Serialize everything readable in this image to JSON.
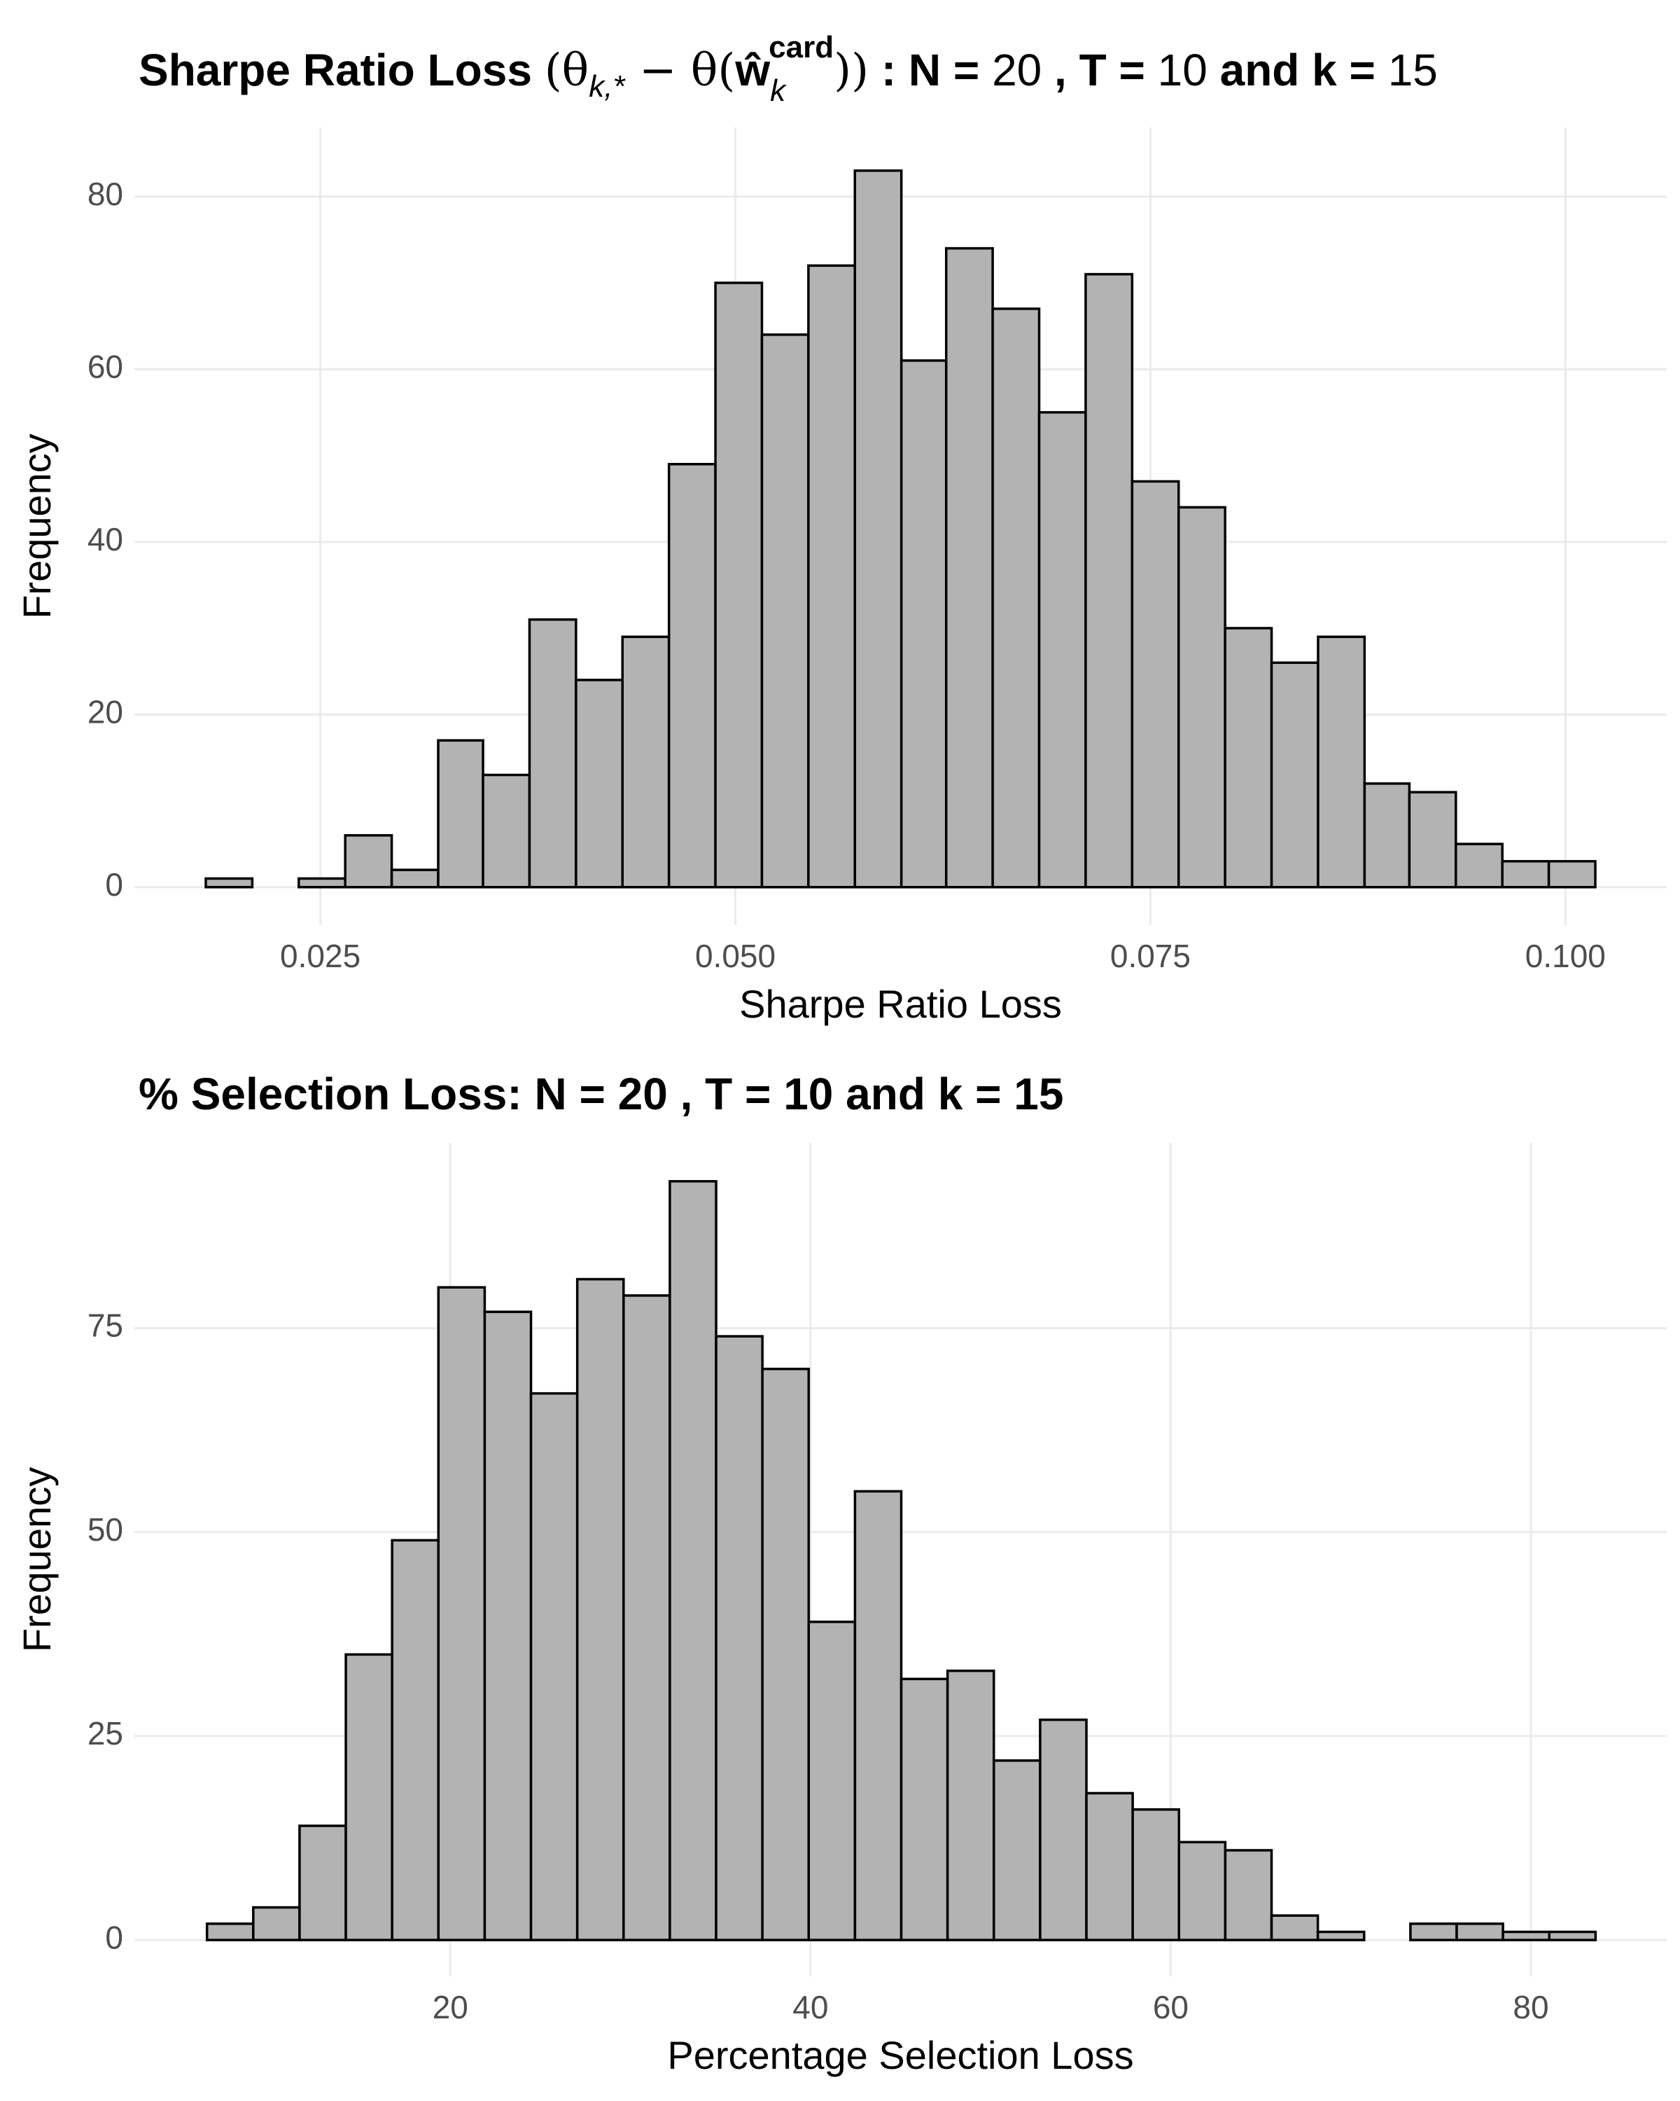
{
  "chart_data": [
    {
      "type": "histogram",
      "title": [
        "Sharpe Ratio Loss ",
        "(θ",
        "k,*",
        " − θ(",
        "ŵ",
        "k",
        "card",
        "))",
        " : N = ",
        "20",
        " , T = ",
        "10",
        "  and k = ",
        "15"
      ],
      "x_label": "Sharpe Ratio Loss",
      "y_label": "Frequency",
      "bins": [
        0.0181,
        0.0209,
        0.0237,
        0.0265,
        0.0293,
        0.0321,
        0.0348,
        0.0376,
        0.0404,
        0.0432,
        0.046,
        0.0488,
        0.0516,
        0.0544,
        0.0572,
        0.06,
        0.0627,
        0.0655,
        0.0683,
        0.0711,
        0.0739,
        0.0767,
        0.0795,
        0.0823,
        0.0851,
        0.0879,
        0.0906,
        0.0934,
        0.0962,
        0.099,
        0.1018
      ],
      "values": [
        1,
        0,
        1,
        6,
        2,
        17,
        13,
        31,
        24,
        29,
        49,
        70,
        64,
        72,
        83,
        61,
        74,
        67,
        55,
        71,
        47,
        44,
        30,
        26,
        29,
        12,
        11,
        5,
        3,
        3
      ],
      "color": "#b3b3b3",
      "xlim": [
        0.0138,
        0.1061
      ],
      "ylim": [
        -4.4,
        88
      ],
      "xticks": [
        0.025,
        {
          "value": 0.05,
          "label": "0.050"
        },
        0.075,
        {
          "value": 0.1,
          "label": "0.100"
        }
      ],
      "yticks": [
        0,
        20,
        40,
        60,
        80
      ],
      "grid": true
    },
    {
      "type": "histogram",
      "title": [
        "% Selection Loss: N = 20 , T = 10 and k = 15"
      ],
      "x_label": "Percentage Selection Loss",
      "y_label": "Frequency",
      "bins": [
        6.49,
        9.06,
        11.63,
        14.2,
        16.77,
        19.34,
        21.91,
        24.48,
        27.05,
        29.62,
        32.19,
        34.76,
        37.33,
        39.9,
        42.47,
        45.04,
        47.61,
        50.18,
        52.75,
        55.32,
        57.89,
        60.46,
        63.03,
        65.6,
        68.17,
        70.74,
        73.31,
        75.88,
        78.45,
        81.02,
        83.59
      ],
      "values": [
        2,
        4,
        14,
        35,
        49,
        80,
        77,
        67,
        81,
        79,
        93,
        74,
        70,
        39,
        55,
        32,
        33,
        22,
        27,
        18,
        16,
        12,
        11,
        3,
        1,
        0,
        2,
        2,
        1,
        1
      ],
      "color": "#b3b3b3",
      "xlim": [
        2.46,
        87.54
      ],
      "ylim": [
        -4.45,
        97.7
      ],
      "xticks": [
        20,
        40,
        60,
        80
      ],
      "yticks": [
        0,
        25,
        50,
        75
      ],
      "grid": true
    }
  ]
}
